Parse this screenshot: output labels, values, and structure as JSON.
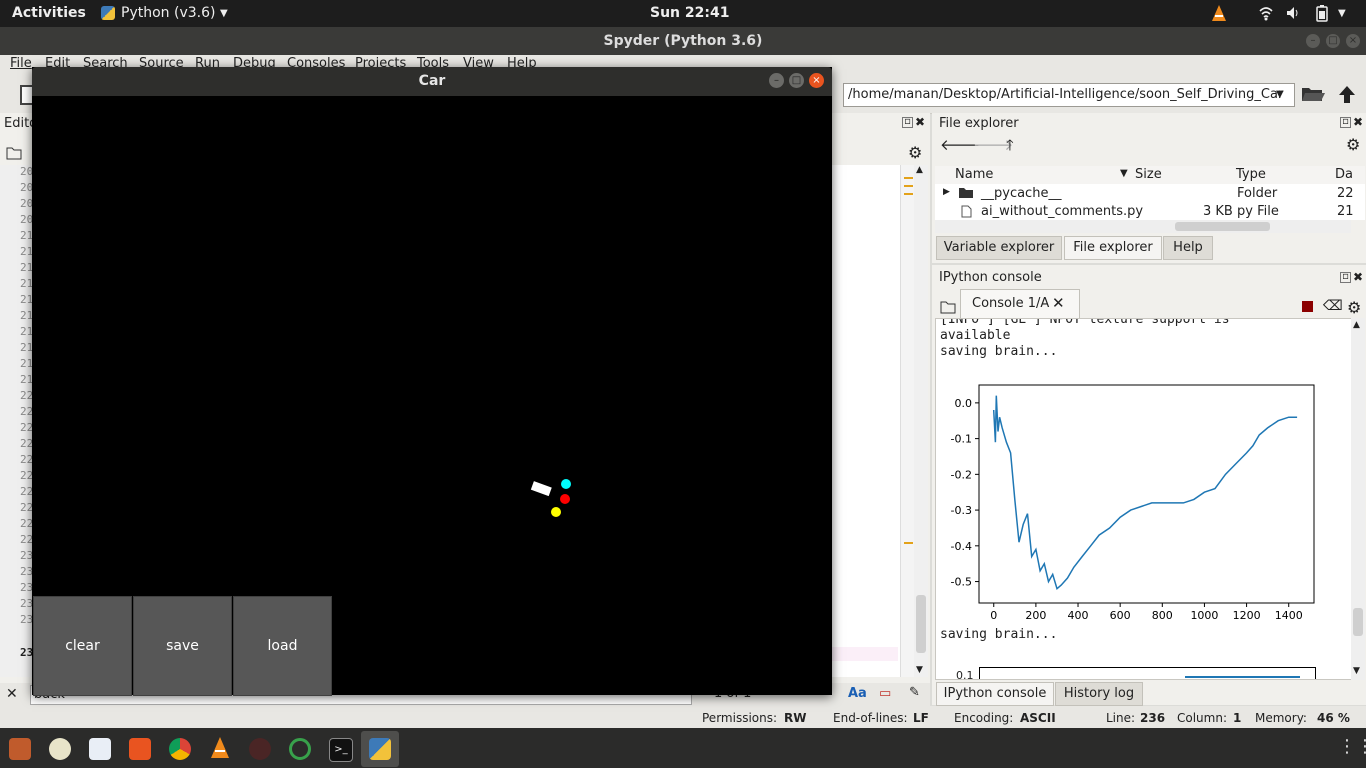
{
  "topbar": {
    "activities": "Activities",
    "app_menu": "Python (v3.6)",
    "clock": "Sun 22:41"
  },
  "spyder": {
    "title": "Spyder (Python 3.6)",
    "menu": [
      "File",
      "Edit",
      "Search",
      "Source",
      "Run",
      "Debug",
      "Consoles",
      "Projects",
      "Tools",
      "View",
      "Help"
    ],
    "path": "/home/manan/Desktop/Artificial-Intelligence/soon_Self_Driving_Car",
    "editor_label": "Edito",
    "line_numbers": [
      "20",
      "20",
      "20",
      "20",
      "21",
      "21",
      "21",
      "21",
      "21",
      "21",
      "21",
      "21",
      "21",
      "21",
      "22",
      "22",
      "22",
      "22",
      "22",
      "22",
      "22",
      "22",
      "22",
      "22",
      "23",
      "23",
      "23",
      "23",
      "23"
    ],
    "current_line_number": "23",
    "find_text": "back",
    "find_count": "1 of 1"
  },
  "file_explorer": {
    "title": "File explorer",
    "columns": [
      "Name",
      "Size",
      "Type",
      "Da"
    ],
    "rows": [
      {
        "name": "__pycache__",
        "size": "",
        "type": "Folder",
        "date": "22"
      },
      {
        "name": "ai_without_comments.py",
        "size": "3 KB",
        "type": "py File",
        "date": "21"
      }
    ],
    "tabs": [
      "Variable explorer",
      "File explorer",
      "Help"
    ]
  },
  "ipython": {
    "title": "IPython console",
    "console_tab": "Console 1/A",
    "lines_top": [
      "[INFO   ] [GL          ] NPOT texture support is",
      "available",
      "saving brain..."
    ],
    "line_after_plot": "saving brain...",
    "cut_label": "0.1",
    "tabs": [
      "IPython console",
      "History log"
    ]
  },
  "chart_data": {
    "type": "line",
    "title": "",
    "xlabel": "",
    "ylabel": "",
    "xlim": [
      -70,
      1520
    ],
    "ylim": [
      -0.56,
      0.05
    ],
    "xticks": [
      "0",
      "200",
      "400",
      "600",
      "800",
      "1000",
      "1200",
      "1400"
    ],
    "yticks": [
      "0.0",
      "-0.1",
      "-0.2",
      "-0.3",
      "-0.4",
      "-0.5"
    ],
    "color": "#1f77b4",
    "series": [
      {
        "x": [
          0,
          8,
          12,
          20,
          28,
          40,
          60,
          80,
          100,
          120,
          140,
          160,
          180,
          200,
          220,
          240,
          260,
          280,
          300,
          320,
          350,
          380,
          420,
          460,
          500,
          550,
          600,
          650,
          700,
          750,
          800,
          850,
          900,
          950,
          1000,
          1050,
          1100,
          1150,
          1200,
          1230,
          1260,
          1300,
          1350,
          1400,
          1440
        ],
        "y": [
          -0.02,
          -0.11,
          0.02,
          -0.08,
          -0.04,
          -0.07,
          -0.11,
          -0.14,
          -0.27,
          -0.39,
          -0.34,
          -0.31,
          -0.43,
          -0.41,
          -0.47,
          -0.45,
          -0.5,
          -0.48,
          -0.52,
          -0.51,
          -0.49,
          -0.46,
          -0.43,
          -0.4,
          -0.37,
          -0.35,
          -0.32,
          -0.3,
          -0.29,
          -0.28,
          -0.28,
          -0.28,
          -0.28,
          -0.27,
          -0.25,
          -0.24,
          -0.2,
          -0.17,
          -0.14,
          -0.12,
          -0.09,
          -0.07,
          -0.05,
          -0.04,
          -0.04
        ]
      }
    ]
  },
  "status": {
    "permissions_label": "Permissions:",
    "permissions": "RW",
    "eol_label": "End-of-lines:",
    "eol": "LF",
    "encoding_label": "Encoding:",
    "encoding": "ASCII",
    "line_label": "Line:",
    "line": "236",
    "column_label": "Column:",
    "column": "1",
    "memory_label": "Memory:",
    "memory": "46 %"
  },
  "car_window": {
    "title": "Car",
    "buttons": {
      "clear": "clear",
      "save": "save",
      "load": "load"
    }
  }
}
